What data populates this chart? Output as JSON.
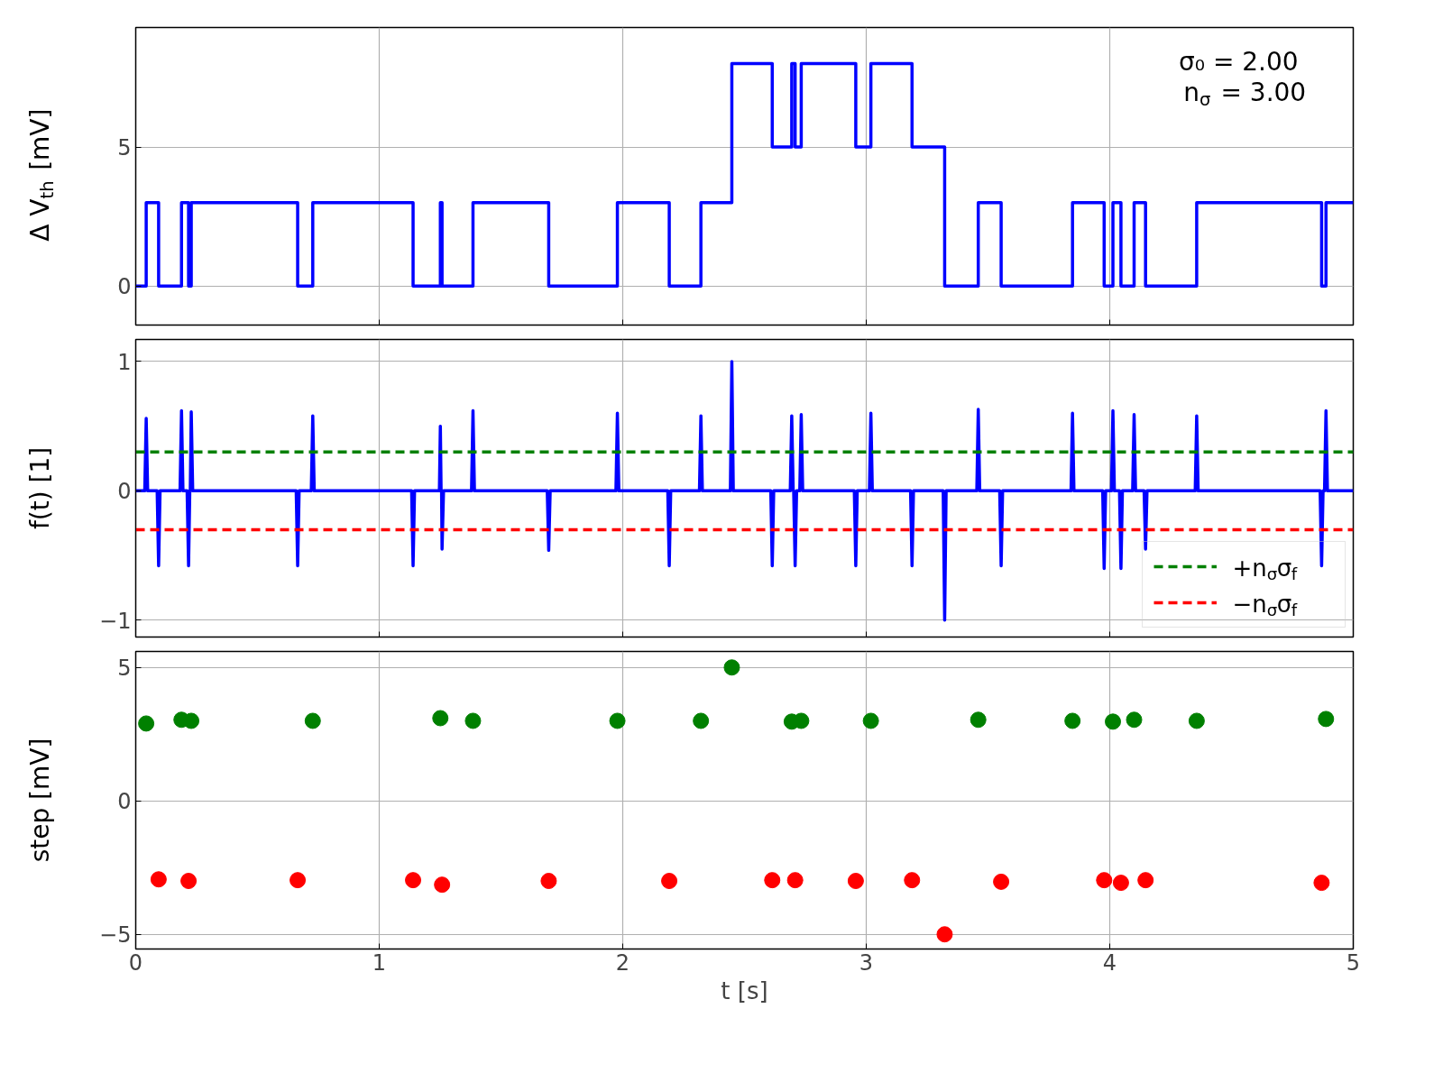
{
  "chart_data": [
    {
      "type": "line",
      "ylabel": "Δ V$_{th}$ [mV]",
      "xlim": [
        0,
        5
      ],
      "xticks": [
        0,
        1,
        2,
        3,
        4,
        5
      ],
      "ylim": [
        -1.4,
        9.3
      ],
      "yticks": [
        0,
        5
      ],
      "grid": true,
      "tick_labels": "y",
      "annotations": [
        "σ₀ = 2.00",
        "n$_{σ}$ = 3.00"
      ],
      "series": [
        {
          "color": "#0000ff",
          "x": [
            0,
            0.043,
            0.043,
            0.094,
            0.094,
            0.188,
            0.188,
            0.217,
            0.217,
            0.228,
            0.228,
            0.665,
            0.665,
            0.727,
            0.727,
            1.139,
            1.139,
            1.251,
            1.251,
            1.258,
            1.258,
            1.385,
            1.385,
            1.696,
            1.696,
            1.978,
            1.978,
            2.191,
            2.191,
            2.321,
            2.321,
            2.448,
            2.448,
            2.614,
            2.614,
            2.694,
            2.694,
            2.708,
            2.708,
            2.733,
            2.733,
            2.957,
            2.957,
            3.019,
            3.019,
            3.188,
            3.188,
            3.322,
            3.322,
            3.46,
            3.46,
            3.554,
            3.554,
            3.847,
            3.847,
            3.977,
            3.977,
            4.013,
            4.013,
            4.046,
            4.046,
            4.1,
            4.1,
            4.147,
            4.147,
            4.357,
            4.357,
            4.87,
            4.87,
            4.888,
            4.888,
            5
          ],
          "values": [
            0,
            0,
            3,
            3,
            0,
            0,
            3,
            3,
            0,
            0,
            3,
            3,
            0,
            0,
            3,
            3,
            0,
            0,
            3,
            3,
            0,
            0,
            3,
            3,
            0,
            0,
            3,
            3,
            0,
            0,
            3,
            3,
            8,
            8,
            5,
            5,
            8,
            8,
            5,
            5,
            8,
            8,
            5,
            5,
            8,
            8,
            5,
            5,
            0,
            0,
            3,
            3,
            0,
            0,
            3,
            3,
            0,
            0,
            3,
            3,
            0,
            0,
            3,
            3,
            0,
            0,
            3,
            3,
            0,
            0,
            3,
            3
          ]
        }
      ]
    },
    {
      "type": "line",
      "ylabel": "f(t) [1]",
      "xlim": [
        0,
        5
      ],
      "xticks": [
        0,
        1,
        2,
        3,
        4,
        5
      ],
      "ylim": [
        -1.13,
        1.17
      ],
      "yticks": [
        {
          "value": -1,
          "label": "−1"
        },
        0,
        1
      ],
      "grid": true,
      "tick_labels": "y",
      "legend": "bottom right",
      "series": [
        {
          "color": "#0000ff",
          "x": [
            0,
            0.037,
            0.043,
            0.049,
            0.088,
            0.094,
            0.1,
            0.182,
            0.188,
            0.194,
            0.211,
            0.217,
            0.222,
            0.224,
            0.228,
            0.234,
            0.659,
            0.665,
            0.671,
            0.721,
            0.727,
            0.733,
            1.133,
            1.139,
            1.145,
            1.247,
            1.251,
            1.254,
            1.256,
            1.258,
            1.264,
            1.379,
            1.385,
            1.391,
            1.69,
            1.696,
            1.702,
            1.972,
            1.978,
            1.984,
            2.185,
            2.191,
            2.197,
            2.315,
            2.321,
            2.327,
            2.442,
            2.448,
            2.454,
            2.608,
            2.614,
            2.62,
            2.688,
            2.694,
            2.7,
            2.702,
            2.708,
            2.714,
            2.727,
            2.733,
            2.739,
            2.951,
            2.957,
            2.963,
            3.013,
            3.019,
            3.025,
            3.182,
            3.188,
            3.194,
            3.316,
            3.322,
            3.328,
            3.454,
            3.46,
            3.466,
            3.548,
            3.554,
            3.56,
            3.841,
            3.847,
            3.853,
            3.971,
            3.977,
            3.983,
            4.007,
            4.013,
            4.019,
            4.04,
            4.046,
            4.052,
            4.094,
            4.1,
            4.106,
            4.141,
            4.147,
            4.153,
            4.351,
            4.357,
            4.363,
            4.864,
            4.87,
            4.876,
            4.882,
            4.888,
            4.894,
            5
          ],
          "values": [
            0,
            0,
            0.56,
            0,
            0,
            -0.58,
            0,
            0,
            0.62,
            0,
            0,
            -0.58,
            0,
            0,
            0.61,
            0,
            0,
            -0.58,
            0,
            0,
            0.58,
            0,
            0,
            -0.58,
            0,
            0,
            0.5,
            0,
            0,
            -0.45,
            0,
            0,
            0.62,
            0,
            0,
            -0.46,
            0,
            0,
            0.6,
            0,
            0,
            -0.58,
            0,
            0,
            0.58,
            0,
            0,
            1.0,
            0,
            0,
            -0.58,
            0,
            0,
            0.58,
            0,
            0,
            -0.58,
            0,
            0,
            0.59,
            0,
            0,
            -0.58,
            0,
            0,
            0.6,
            0,
            0,
            -0.58,
            0,
            0,
            -1.0,
            0,
            0,
            0.63,
            0,
            0,
            -0.58,
            0,
            0,
            0.6,
            0,
            0,
            -0.6,
            0,
            0,
            0.62,
            0,
            0,
            -0.6,
            0,
            0,
            0.59,
            0,
            0,
            -0.45,
            0,
            0,
            0.58,
            0,
            0,
            -0.58,
            0,
            0,
            0.62,
            0,
            0
          ]
        },
        {
          "name": "+n$_{σ}$σ$_{f}$",
          "color": "#008000",
          "line_style": "dashed",
          "x": [
            0,
            5
          ],
          "values": [
            0.3,
            0.3
          ]
        },
        {
          "name": "−n$_{σ}$σ$_{f}$",
          "color": "#ff0000",
          "line_style": "dashed",
          "x": [
            0,
            5
          ],
          "values": [
            -0.3,
            -0.3
          ]
        }
      ]
    },
    {
      "type": "scatter",
      "ylabel": "step [mV]",
      "xlabel": "t [s]",
      "xlim": [
        0,
        5
      ],
      "xticks": [
        0,
        1,
        2,
        3,
        4,
        5
      ],
      "ylim": [
        -5.55,
        5.6
      ],
      "yticks": [
        {
          "value": -5,
          "label": "−5"
        },
        0,
        5
      ],
      "grid": true,
      "marker": "circle",
      "series": [
        {
          "color": "#008000",
          "x": [
            0.043,
            0.188,
            0.228,
            0.727,
            1.251,
            1.385,
            1.978,
            2.321,
            2.448,
            2.694,
            2.733,
            3.019,
            3.46,
            3.847,
            4.013,
            4.1,
            4.357,
            4.888
          ],
          "values": [
            2.9,
            3.04,
            3.0,
            3.0,
            3.1,
            3.0,
            3.0,
            3.0,
            5.0,
            2.97,
            3.0,
            3.0,
            3.04,
            3.0,
            2.97,
            3.04,
            3.0,
            3.07
          ]
        },
        {
          "color": "#ff0000",
          "x": [
            0.094,
            0.217,
            0.665,
            1.139,
            1.258,
            1.696,
            2.191,
            2.614,
            2.708,
            2.957,
            3.188,
            3.322,
            3.554,
            3.977,
            4.046,
            4.147,
            4.87
          ],
          "values": [
            -2.94,
            -3.0,
            -2.97,
            -2.97,
            -3.14,
            -3.0,
            -3.0,
            -2.97,
            -2.97,
            -3.0,
            -2.97,
            -5.0,
            -3.03,
            -2.97,
            -3.07,
            -2.97,
            -3.07
          ]
        }
      ]
    }
  ]
}
